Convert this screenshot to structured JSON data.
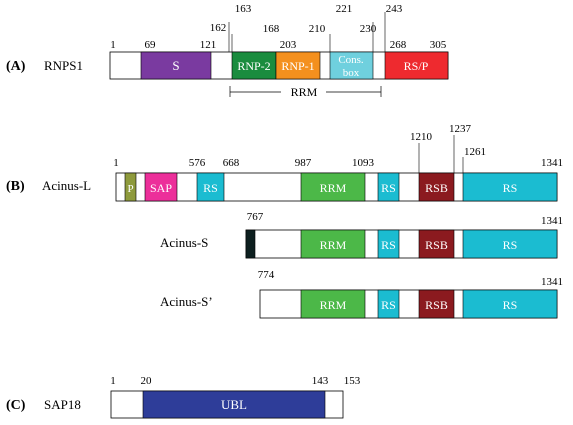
{
  "panels": [
    {
      "letter": "(A)",
      "protein": "RNPS1",
      "numbers": [
        "1",
        "69",
        "121",
        "162",
        "163",
        "168",
        "203",
        "210",
        "221",
        "230",
        "243",
        "268",
        "305"
      ],
      "domains": [
        {
          "label": "S",
          "color": "#7a3aa0"
        },
        {
          "label": "RNP-2",
          "color": "#1a8c3e"
        },
        {
          "label": "RNP-1",
          "color": "#f4901e"
        },
        {
          "label": "Cons.",
          "label2": "box",
          "color": "#6fd0de"
        },
        {
          "label": "RS/P",
          "color": "#ee2a2f"
        }
      ],
      "bracket_label": "RRM"
    },
    {
      "letter": "(B)",
      "isoforms": [
        {
          "protein": "Acinus-L",
          "numbers": [
            "1",
            "576",
            "668",
            "987",
            "1093",
            "1210",
            "1237",
            "1261",
            "1341"
          ],
          "domains": [
            {
              "label": "P",
              "color": "#8e9a3c"
            },
            {
              "label": "SAP",
              "color": "#ec2f9a"
            },
            {
              "label": "RS",
              "color": "#1bbcd1"
            },
            {
              "label": "RRM",
              "color": "#4cb848"
            },
            {
              "label": "RS",
              "color": "#1bbcd1"
            },
            {
              "label": "RSB",
              "color": "#8b1a1f"
            },
            {
              "label": "RS",
              "color": "#1bbcd1"
            }
          ]
        },
        {
          "protein": "Acinus-S",
          "numbers": [
            "767",
            "1341"
          ],
          "domains": [
            {
              "label": "",
              "color": "#0d1f1f"
            },
            {
              "label": "RRM",
              "color": "#4cb848"
            },
            {
              "label": "RS",
              "color": "#1bbcd1"
            },
            {
              "label": "RSB",
              "color": "#8b1a1f"
            },
            {
              "label": "RS",
              "color": "#1bbcd1"
            }
          ]
        },
        {
          "protein": "Acinus-S’",
          "numbers": [
            "774",
            "1341"
          ],
          "domains": [
            {
              "label": "RRM",
              "color": "#4cb848"
            },
            {
              "label": "RS",
              "color": "#1bbcd1"
            },
            {
              "label": "RSB",
              "color": "#8b1a1f"
            },
            {
              "label": "RS",
              "color": "#1bbcd1"
            }
          ]
        }
      ]
    },
    {
      "letter": "(C)",
      "protein": "SAP18",
      "numbers": [
        "1",
        "20",
        "143",
        "153"
      ],
      "domains": [
        {
          "label": "UBL",
          "color": "#2e3d99"
        }
      ]
    }
  ]
}
